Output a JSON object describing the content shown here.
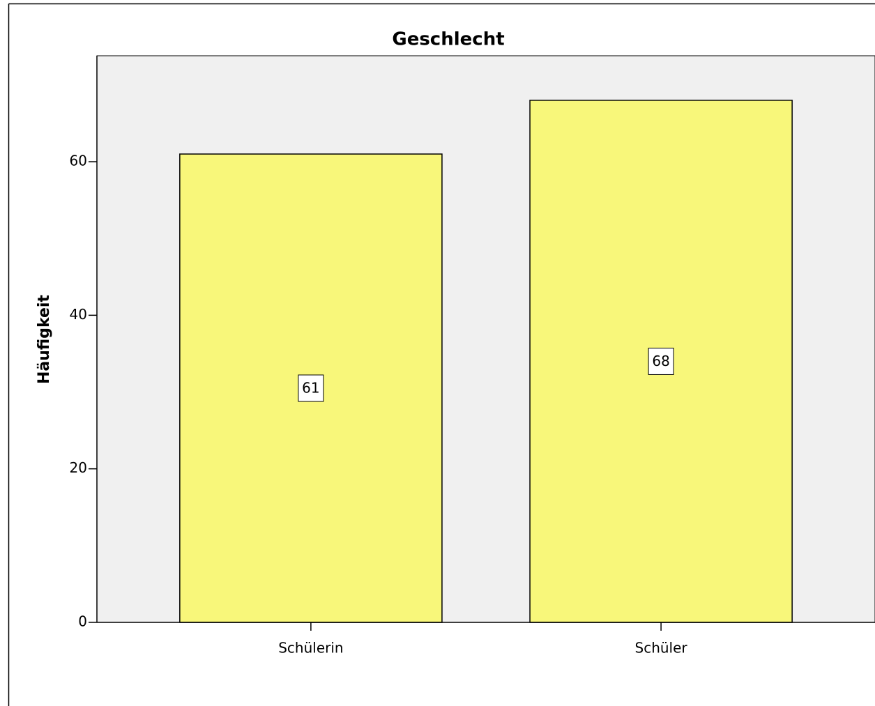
{
  "chart_data": {
    "type": "bar",
    "title": "Geschlecht",
    "y_label": "Häufigkeit",
    "categories": [
      "Schülerin",
      "Schüler"
    ],
    "values": [
      61,
      68
    ],
    "color": "#f8f77a",
    "ylim": [
      0,
      73.8
    ],
    "yticks": [
      0,
      20,
      40,
      60
    ],
    "grid": false
  }
}
